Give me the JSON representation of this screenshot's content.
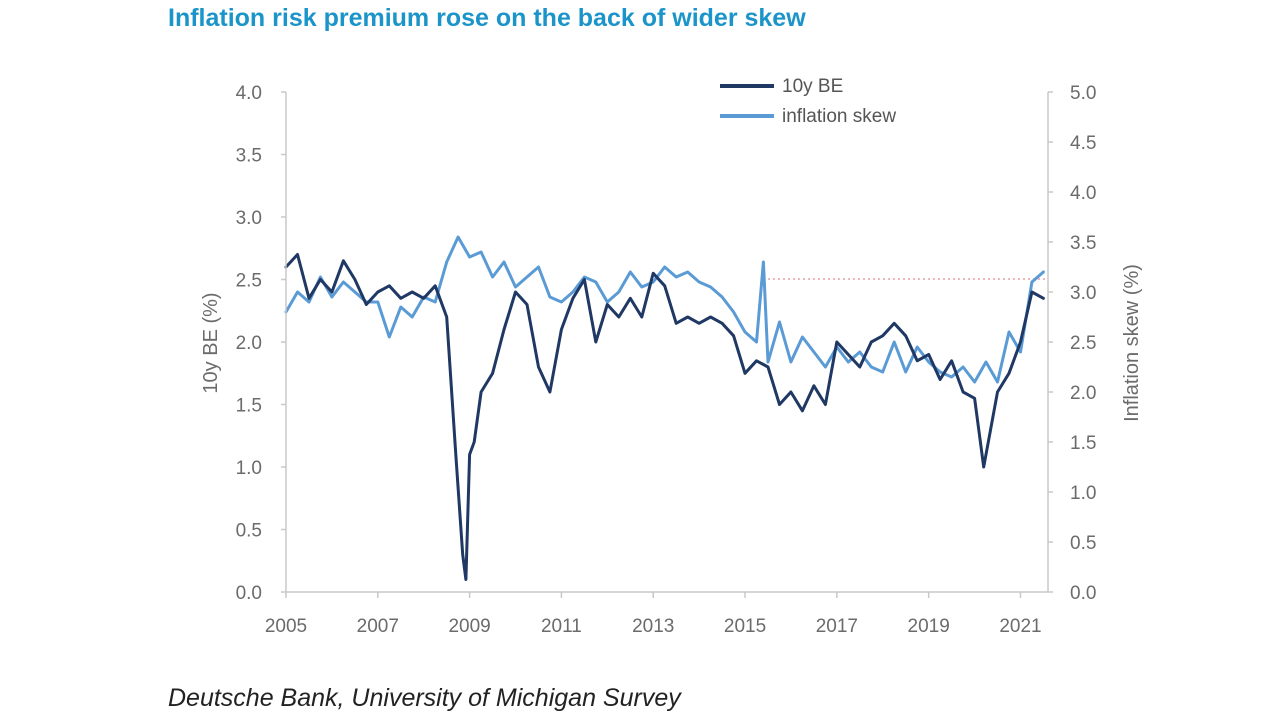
{
  "title": "Inflation risk premium rose on the back of wider skew",
  "source": "Deutsche Bank, University of Michigan Survey",
  "chart_data": {
    "type": "line",
    "x_range": [
      2005,
      2021.6
    ],
    "x_ticks": [
      "2005",
      "2007",
      "2009",
      "2011",
      "2013",
      "2015",
      "2017",
      "2019",
      "2021"
    ],
    "ylabel": "10y BE (%)",
    "ylim": [
      0,
      4
    ],
    "y_ticks": [
      "0.0",
      "0.5",
      "1.0",
      "1.5",
      "2.0",
      "2.5",
      "3.0",
      "3.5",
      "4.0"
    ],
    "ylabel_right": "Inflation skew (%)",
    "ylim_right": [
      0,
      5
    ],
    "y_ticks_right": [
      "0.0",
      "0.5",
      "1.0",
      "1.5",
      "2.0",
      "2.5",
      "3.0",
      "3.5",
      "4.0",
      "4.5",
      "5.0"
    ],
    "legend_position": "top-right",
    "reference_line": {
      "axis": "right",
      "value": 3.13,
      "x_start": 2015.5,
      "color": "#e8a0a0",
      "style": "dotted"
    },
    "series": [
      {
        "name": "10y BE",
        "axis": "left",
        "color": "#1f3864",
        "x": [
          2005.0,
          2005.25,
          2005.5,
          2005.75,
          2006.0,
          2006.25,
          2006.5,
          2006.75,
          2007.0,
          2007.25,
          2007.5,
          2007.75,
          2008.0,
          2008.25,
          2008.5,
          2008.7,
          2008.85,
          2008.92,
          2009.0,
          2009.1,
          2009.25,
          2009.5,
          2009.75,
          2010.0,
          2010.25,
          2010.5,
          2010.75,
          2011.0,
          2011.25,
          2011.5,
          2011.75,
          2012.0,
          2012.25,
          2012.5,
          2012.75,
          2013.0,
          2013.25,
          2013.5,
          2013.75,
          2014.0,
          2014.25,
          2014.5,
          2014.75,
          2015.0,
          2015.25,
          2015.5,
          2015.75,
          2016.0,
          2016.25,
          2016.5,
          2016.75,
          2017.0,
          2017.25,
          2017.5,
          2017.75,
          2018.0,
          2018.25,
          2018.5,
          2018.75,
          2019.0,
          2019.25,
          2019.5,
          2019.75,
          2020.0,
          2020.2,
          2020.35,
          2020.5,
          2020.75,
          2021.0,
          2021.25,
          2021.5
        ],
        "values": [
          2.6,
          2.7,
          2.35,
          2.5,
          2.4,
          2.65,
          2.5,
          2.3,
          2.4,
          2.45,
          2.35,
          2.4,
          2.35,
          2.45,
          2.2,
          1.1,
          0.3,
          0.1,
          1.1,
          1.2,
          1.6,
          1.75,
          2.1,
          2.4,
          2.3,
          1.8,
          1.6,
          2.1,
          2.35,
          2.5,
          2.0,
          2.3,
          2.2,
          2.35,
          2.2,
          2.55,
          2.45,
          2.15,
          2.2,
          2.15,
          2.2,
          2.15,
          2.05,
          1.75,
          1.85,
          1.8,
          1.5,
          1.6,
          1.45,
          1.65,
          1.5,
          2.0,
          1.9,
          1.8,
          2.0,
          2.05,
          2.15,
          2.05,
          1.85,
          1.9,
          1.7,
          1.85,
          1.6,
          1.55,
          1.0,
          1.3,
          1.6,
          1.75,
          2.0,
          2.4,
          2.35
        ]
      },
      {
        "name": "inflation skew",
        "axis": "right",
        "color": "#5b9bd5",
        "x": [
          2005.0,
          2005.25,
          2005.5,
          2005.75,
          2006.0,
          2006.25,
          2006.5,
          2006.75,
          2007.0,
          2007.25,
          2007.5,
          2007.75,
          2008.0,
          2008.25,
          2008.5,
          2008.75,
          2009.0,
          2009.25,
          2009.5,
          2009.75,
          2010.0,
          2010.25,
          2010.5,
          2010.75,
          2011.0,
          2011.25,
          2011.5,
          2011.75,
          2012.0,
          2012.25,
          2012.5,
          2012.75,
          2013.0,
          2013.25,
          2013.5,
          2013.75,
          2014.0,
          2014.25,
          2014.5,
          2014.75,
          2015.0,
          2015.25,
          2015.4,
          2015.5,
          2015.75,
          2016.0,
          2016.25,
          2016.5,
          2016.75,
          2017.0,
          2017.25,
          2017.5,
          2017.75,
          2018.0,
          2018.25,
          2018.5,
          2018.75,
          2019.0,
          2019.25,
          2019.5,
          2019.75,
          2020.0,
          2020.25,
          2020.5,
          2020.75,
          2021.0,
          2021.25,
          2021.5
        ],
        "values": [
          2.8,
          3.0,
          2.9,
          3.15,
          2.95,
          3.1,
          3.0,
          2.9,
          2.9,
          2.55,
          2.85,
          2.75,
          2.95,
          2.9,
          3.3,
          3.55,
          3.35,
          3.4,
          3.15,
          3.3,
          3.05,
          3.15,
          3.25,
          2.95,
          2.9,
          3.0,
          3.15,
          3.1,
          2.9,
          3.0,
          3.2,
          3.05,
          3.1,
          3.25,
          3.15,
          3.2,
          3.1,
          3.05,
          2.95,
          2.8,
          2.6,
          2.5,
          3.3,
          2.3,
          2.7,
          2.3,
          2.55,
          2.4,
          2.25,
          2.45,
          2.3,
          2.4,
          2.25,
          2.2,
          2.5,
          2.2,
          2.45,
          2.3,
          2.2,
          2.15,
          2.25,
          2.1,
          2.3,
          2.1,
          2.6,
          2.4,
          3.1,
          3.2
        ]
      }
    ]
  }
}
